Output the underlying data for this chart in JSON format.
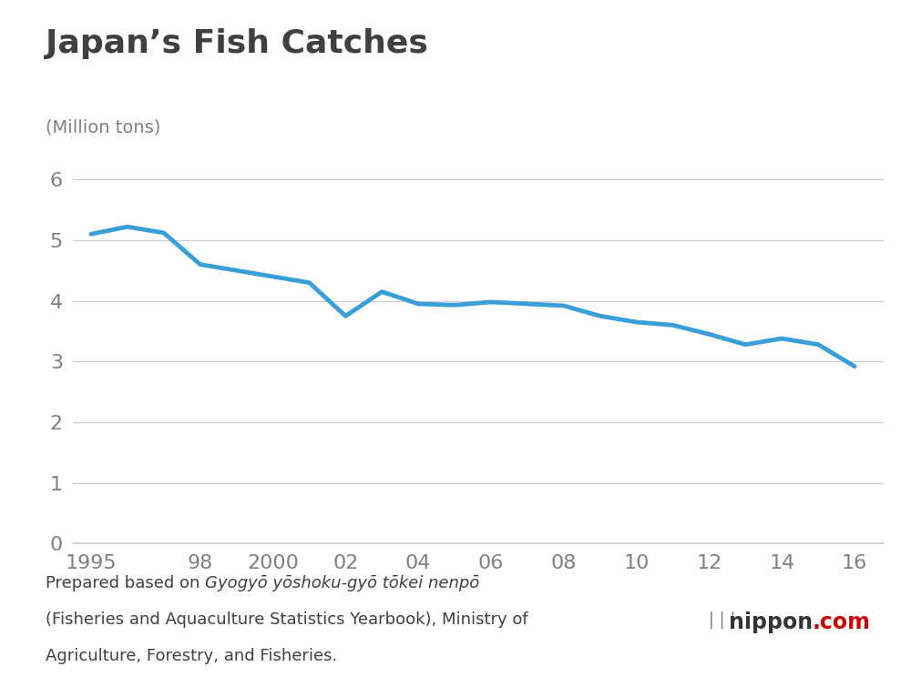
{
  "title": "Japan’s Fish Catches",
  "ylabel": "(Million tons)",
  "line_color": "#3a9fd8",
  "line_width": 3.5,
  "background_color": "#ffffff",
  "years": [
    1995,
    1996,
    1997,
    1998,
    1999,
    2000,
    2001,
    2002,
    2003,
    2004,
    2005,
    2006,
    2007,
    2008,
    2009,
    2010,
    2011,
    2012,
    2013,
    2014,
    2015,
    2016
  ],
  "values": [
    5.1,
    5.22,
    5.12,
    4.6,
    4.5,
    4.4,
    4.3,
    3.75,
    4.15,
    3.95,
    3.93,
    3.98,
    3.95,
    3.92,
    3.75,
    3.65,
    3.6,
    3.45,
    3.28,
    3.38,
    3.28,
    2.92
  ],
  "xtick_labels": [
    "1995",
    "98",
    "2000",
    "02",
    "04",
    "06",
    "08",
    "10",
    "12",
    "14",
    "16"
  ],
  "xtick_positions": [
    1995,
    1998,
    2000,
    2002,
    2004,
    2006,
    2008,
    2010,
    2012,
    2014,
    2016
  ],
  "ytick_labels": [
    "0",
    "1",
    "2",
    "3",
    "4",
    "5",
    "6"
  ],
  "ytick_positions": [
    0,
    1,
    2,
    3,
    4,
    5,
    6
  ],
  "ylim": [
    0,
    6.2
  ],
  "xlim": [
    1994.5,
    2016.8
  ],
  "title_fontsize": 26,
  "title_color": "#404040",
  "axis_label_fontsize": 14,
  "tick_fontsize": 16,
  "tick_color": "#808080",
  "grid_color": "#cccccc",
  "note_line1_normal": "Prepared based on ",
  "note_line1_italic": "Gyogyō yōshoku-gyō tōkei nenpō",
  "note_line2": "(Fisheries and Aquaculture Statistics Yearbook), Ministry of",
  "note_line3": "Agriculture, Forestry, and Fisheries.",
  "note_fontsize": 13,
  "note_color": "#404040",
  "nippon_fontsize": 17,
  "nippon_color": "#333333",
  "com_color": "#cc0000"
}
